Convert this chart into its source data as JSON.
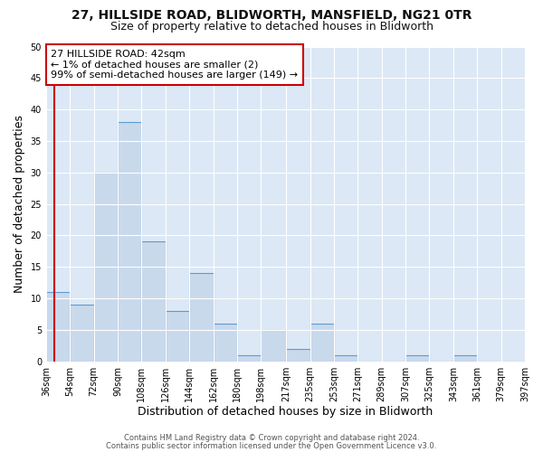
{
  "title1": "27, HILLSIDE ROAD, BLIDWORTH, MANSFIELD, NG21 0TR",
  "title2": "Size of property relative to detached houses in Blidworth",
  "xlabel": "Distribution of detached houses by size in Blidworth",
  "ylabel": "Number of detached properties",
  "bin_edges": [
    36,
    54,
    72,
    90,
    108,
    126,
    144,
    162,
    180,
    198,
    217,
    235,
    253,
    271,
    289,
    307,
    325,
    343,
    361,
    379,
    397
  ],
  "bar_heights": [
    11,
    9,
    30,
    38,
    19,
    8,
    14,
    6,
    1,
    5,
    2,
    6,
    1,
    0,
    0,
    1,
    0,
    1,
    0,
    0
  ],
  "bar_color": "#c9d9ec",
  "bar_edge_color": "#5b9bd5",
  "property_size": 42,
  "red_line_color": "#cc0000",
  "annotation_line1": "27 HILLSIDE ROAD: 42sqm",
  "annotation_line2": "← 1% of detached houses are smaller (2)",
  "annotation_line3": "99% of semi-detached houses are larger (149) →",
  "annotation_box_color": "#ffffff",
  "annotation_box_edge_color": "#cc0000",
  "ylim": [
    0,
    50
  ],
  "yticks": [
    0,
    5,
    10,
    15,
    20,
    25,
    30,
    35,
    40,
    45,
    50
  ],
  "xtick_labels": [
    "36sqm",
    "54sqm",
    "72sqm",
    "90sqm",
    "108sqm",
    "126sqm",
    "144sqm",
    "162sqm",
    "180sqm",
    "198sqm",
    "217sqm",
    "235sqm",
    "253sqm",
    "271sqm",
    "289sqm",
    "307sqm",
    "325sqm",
    "343sqm",
    "361sqm",
    "379sqm",
    "397sqm"
  ],
  "footer1": "Contains HM Land Registry data © Crown copyright and database right 2024.",
  "footer2": "Contains public sector information licensed under the Open Government Licence v3.0.",
  "fig_bg_color": "#ffffff",
  "plot_bg_color": "#dce8f5",
  "title1_fontsize": 10,
  "title2_fontsize": 9,
  "axis_label_fontsize": 9,
  "tick_fontsize": 7,
  "footer_fontsize": 6,
  "annotation_fontsize": 8
}
